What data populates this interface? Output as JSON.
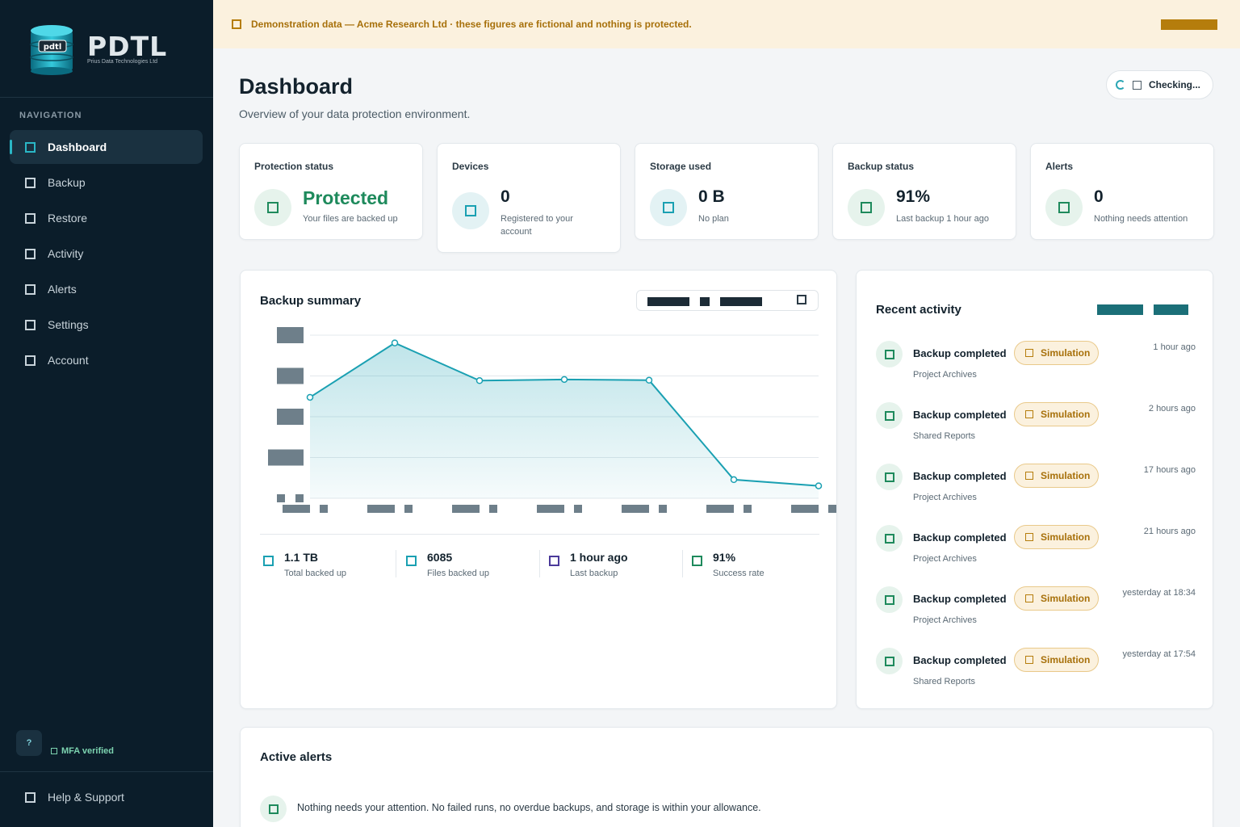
{
  "brand": {
    "logo_text": "PDTL",
    "logo_subtitle": "Prius Data Technologies Ltd",
    "logo_badge": "pdtl"
  },
  "sidebar": {
    "heading": "NAVIGATION",
    "items": [
      {
        "label": "Dashboard",
        "active": true
      },
      {
        "label": "Backup"
      },
      {
        "label": "Restore"
      },
      {
        "label": "Activity"
      },
      {
        "label": "Alerts"
      },
      {
        "label": "Settings"
      },
      {
        "label": "Account"
      }
    ],
    "help_badge": "?",
    "mfa_label": "MFA verified",
    "help_support": "Help & Support"
  },
  "banner": {
    "text": "Demonstration data — Acme Research Ltd · these figures are fictional and nothing is protected."
  },
  "header": {
    "title": "Dashboard",
    "subtitle": "Overview of your data protection environment.",
    "status": "Checking..."
  },
  "stats": [
    {
      "label": "Protection status",
      "value": "Protected",
      "desc": "Your files are backed up"
    },
    {
      "label": "Devices",
      "value": "0",
      "desc": "Registered to your account"
    },
    {
      "label": "Storage used",
      "value": "0 B",
      "desc": "No plan"
    },
    {
      "label": "Backup status",
      "value": "91%",
      "desc": "Last backup 1 hour ago"
    },
    {
      "label": "Alerts",
      "value": "0",
      "desc": "Nothing needs attention"
    }
  ],
  "summary": {
    "title": "Backup summary",
    "metrics": [
      {
        "value": "1.1 TB",
        "label": "Total backed up",
        "color": "#1aa0b2"
      },
      {
        "value": "6085",
        "label": "Files backed up",
        "color": "#1aa0b2"
      },
      {
        "value": "1 hour ago",
        "label": "Last backup",
        "color": "#4b3a9a"
      },
      {
        "value": "91%",
        "label": "Success rate",
        "color": "#1e8a5c"
      }
    ]
  },
  "chart_data": {
    "type": "area",
    "series": [
      {
        "values": [
          2.6,
          4.0,
          3.03,
          3.06,
          3.04,
          0.48,
          0.32
        ]
      }
    ],
    "ylim": [
      0,
      4.2
    ],
    "grid": true,
    "color": "#1aa0b2"
  },
  "activity": {
    "title": "Recent activity",
    "items": [
      {
        "title": "Backup completed",
        "badge": "Simulation",
        "sub": "Project Archives",
        "time": "1 hour ago"
      },
      {
        "title": "Backup completed",
        "badge": "Simulation",
        "sub": "Shared Reports",
        "time": "2 hours ago"
      },
      {
        "title": "Backup completed",
        "badge": "Simulation",
        "sub": "Project Archives",
        "time": "17 hours ago"
      },
      {
        "title": "Backup completed",
        "badge": "Simulation",
        "sub": "Project Archives",
        "time": "21 hours ago"
      },
      {
        "title": "Backup completed",
        "badge": "Simulation",
        "sub": "Project Archives",
        "time": "yesterday at 18:34"
      },
      {
        "title": "Backup completed",
        "badge": "Simulation",
        "sub": "Shared Reports",
        "time": "yesterday at 17:54"
      }
    ]
  },
  "alerts": {
    "title": "Active alerts",
    "message": "Nothing needs your attention. No failed runs, no overdue backups, and storage is within your allowance."
  },
  "colors": {
    "accent": "#1aa0b2",
    "success": "#1e8a5c",
    "warning": "#b57d0c",
    "sidebar_bg": "#0b1d2a"
  }
}
